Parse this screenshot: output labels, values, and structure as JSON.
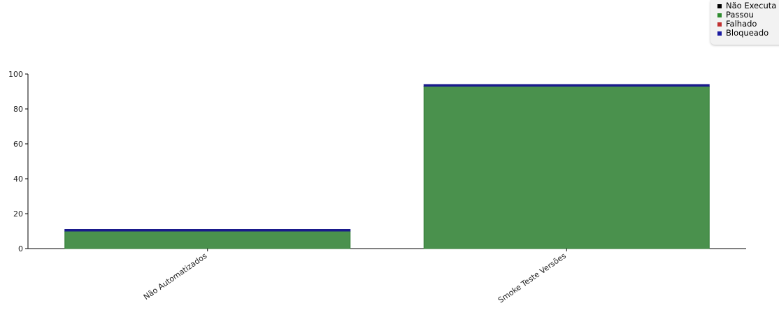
{
  "chart_data": {
    "type": "bar",
    "stacked": true,
    "categories": [
      "Não Automatizados",
      "Smoke Teste Versões"
    ],
    "series": [
      {
        "name": "Não Executado",
        "color": "#000000",
        "values": [
          0,
          0
        ]
      },
      {
        "name": "Passou",
        "color": "#4a914d",
        "values": [
          10,
          93
        ]
      },
      {
        "name": "Falhado",
        "color": "#b22222",
        "values": [
          0,
          0
        ]
      },
      {
        "name": "Bloqueado",
        "color": "#1a1a8c",
        "values": [
          1,
          1
        ]
      }
    ],
    "legend_labels": [
      "Não Executa",
      "Passou",
      "Falhado",
      "Bloqueado"
    ],
    "yticks": [
      "0",
      "20",
      "40",
      "60",
      "80",
      "100"
    ],
    "ylim": [
      0,
      100
    ],
    "grid": false,
    "legend_position": "top-right"
  }
}
